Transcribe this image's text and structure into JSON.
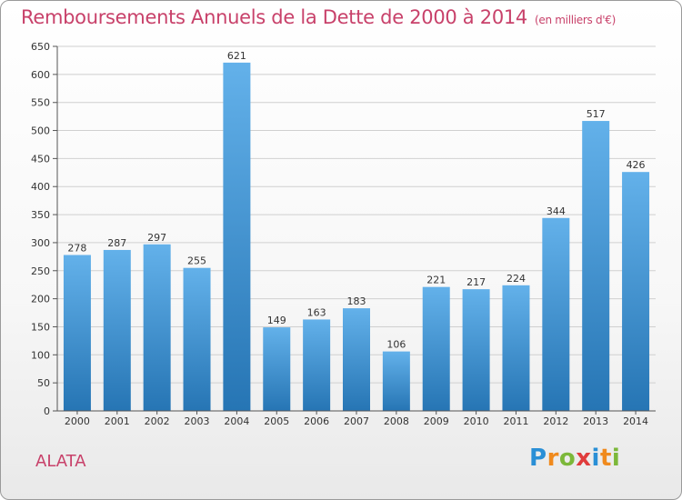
{
  "title": "Remboursements Annuels de la Dette de 2000 à 2014",
  "subtitle": "(en milliers d'€)",
  "commune": "ALATA",
  "logo_letters": [
    "P",
    "r",
    "o",
    "x",
    "i",
    "t",
    "i"
  ],
  "colors": {
    "bar_top": "#63b1ea",
    "bar_bottom": "#2675b4",
    "title": "#c8416a",
    "grid": "#d0d0d0"
  },
  "chart_data": {
    "type": "bar",
    "title": "Remboursements Annuels de la Dette de 2000 à 2014",
    "subtitle": "(en milliers d'€)",
    "categories": [
      "2000",
      "2001",
      "2002",
      "2003",
      "2004",
      "2005",
      "2006",
      "2007",
      "2008",
      "2009",
      "2010",
      "2011",
      "2012",
      "2013",
      "2014"
    ],
    "values": [
      278,
      287,
      297,
      255,
      621,
      149,
      163,
      183,
      106,
      221,
      217,
      224,
      344,
      517,
      426
    ],
    "ylim": [
      0,
      650
    ],
    "yticks": [
      0,
      50,
      100,
      150,
      200,
      250,
      300,
      350,
      400,
      450,
      500,
      550,
      600,
      650
    ],
    "grid": true
  }
}
